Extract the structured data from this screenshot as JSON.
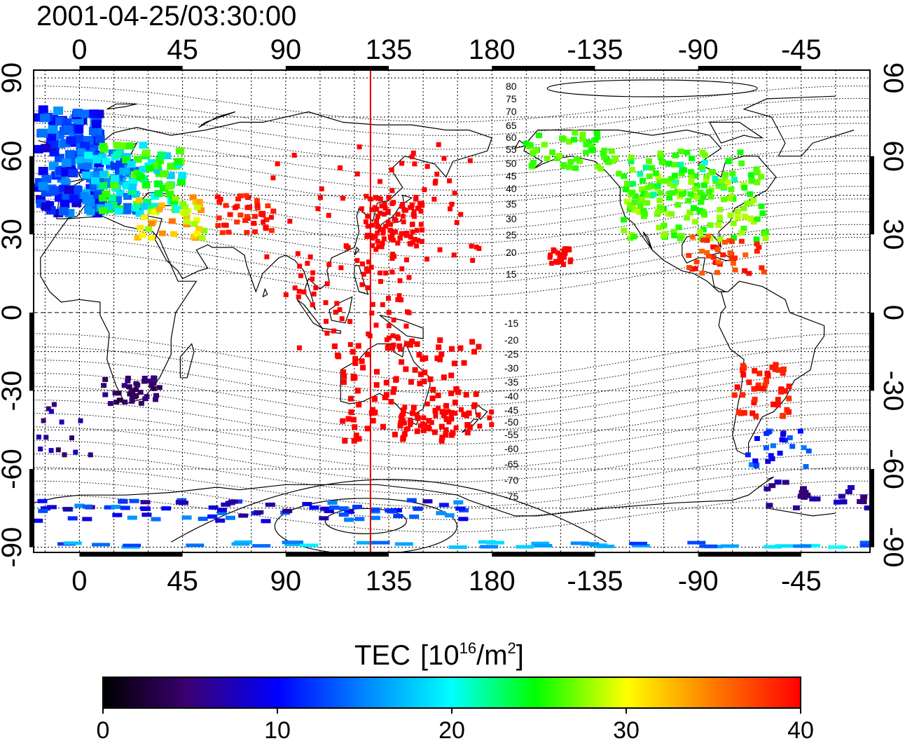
{
  "title": "2001-04-25/03:30:00",
  "map": {
    "top_lon_ticks": [
      "0",
      "45",
      "90",
      "135",
      "180",
      "-135",
      "-90",
      "-45"
    ],
    "bottom_lon_ticks": [
      "0",
      "45",
      "90",
      "135",
      "180",
      "-135",
      "-90",
      "-45"
    ],
    "left_lat_ticks": [
      "90",
      "60",
      "30",
      "0",
      "-30",
      "-60",
      "-90"
    ],
    "right_lat_ticks": [
      "90",
      "60",
      "30",
      "0",
      "-30",
      "-60",
      "-90"
    ],
    "lon_range": [
      -20,
      345
    ],
    "lat_range": [
      -92,
      93
    ],
    "marker_longitude": 127,
    "marker_color": "#e00000",
    "dip_latitude_labels_north": [
      "80",
      "75",
      "70",
      "65",
      "60",
      "55",
      "50",
      "45",
      "40",
      "35",
      "30",
      "25",
      "20",
      "15"
    ],
    "dip_latitude_labels_south": [
      "-15",
      "-20",
      "-25",
      "-30",
      "-35",
      "-40",
      "-45",
      "-50",
      "-55",
      "-60",
      "-65",
      "-70",
      "-75"
    ]
  },
  "colorbar": {
    "title": "TEC",
    "unit_open": "[10",
    "unit_exp": "16",
    "unit_mid": "/m",
    "unit_sq": "2",
    "unit_close": "]",
    "ticks": [
      "0",
      "10",
      "20",
      "30",
      "40"
    ],
    "range": [
      0,
      40
    ],
    "colors": [
      "#000000",
      "#3a0070",
      "#0000ff",
      "#00ffff",
      "#00ff00",
      "#ffff00",
      "#ff8000",
      "#ff0000"
    ]
  }
}
